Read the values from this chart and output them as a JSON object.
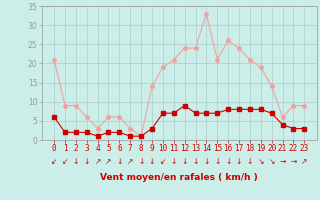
{
  "hours": [
    0,
    1,
    2,
    3,
    4,
    5,
    6,
    7,
    8,
    9,
    10,
    11,
    12,
    13,
    14,
    15,
    16,
    17,
    18,
    19,
    20,
    21,
    22,
    23
  ],
  "wind_avg": [
    6,
    2,
    2,
    2,
    1,
    2,
    2,
    1,
    1,
    3,
    7,
    7,
    9,
    7,
    7,
    7,
    8,
    8,
    8,
    8,
    7,
    4,
    3,
    3
  ],
  "wind_gust": [
    21,
    9,
    9,
    6,
    3,
    6,
    6,
    3,
    1,
    14,
    19,
    21,
    24,
    24,
    33,
    21,
    26,
    24,
    21,
    19,
    14,
    6,
    9,
    9
  ],
  "color_avg": "#cc0000",
  "color_gust": "#f4a0a0",
  "bg_color": "#cceee8",
  "grid_color": "#aacccc",
  "xlabel": "Vent moyen/en rafales ( km/h )",
  "xlabel_color": "#cc0000",
  "ylim": [
    0,
    35
  ],
  "yticks": [
    0,
    5,
    10,
    15,
    20,
    25,
    30,
    35
  ],
  "tick_fontsize": 5.5,
  "xlabel_fontsize": 6.5,
  "marker_size": 2.5,
  "arrow_dirs": [
    "↙",
    "↙",
    "↓",
    "↓",
    "↗",
    "↗",
    "↓",
    "↗",
    "↓",
    "↓",
    "↙",
    "↓",
    "↓",
    "↓",
    "↓",
    "↓",
    "↓",
    "↓",
    "↓",
    "↘",
    "↘",
    "→",
    "→",
    "↗"
  ]
}
